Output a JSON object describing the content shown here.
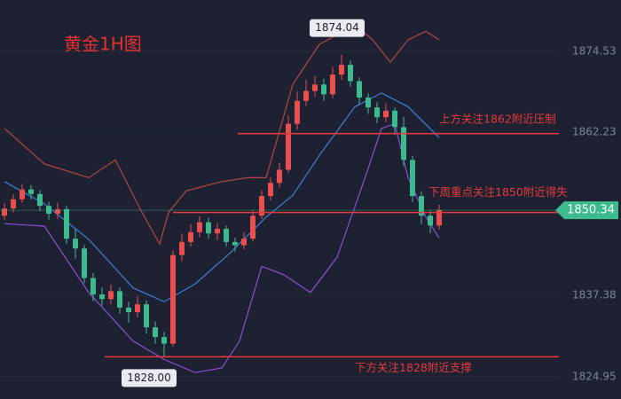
{
  "chart_data": {
    "type": "candlestick",
    "title": "黄金1H图",
    "open": [
      1849.5,
      1850.6,
      1852.0,
      1853.5,
      1852.8,
      1851.0,
      1849.8,
      1850.5,
      1846.0,
      1844.5,
      1840.0,
      1837.5,
      1836.8,
      1838.0,
      1835.5,
      1834.8,
      1836.0,
      1832.5,
      1831.0,
      1830.0,
      1843.5,
      1845.5,
      1847.0,
      1848.5,
      1846.8,
      1847.5,
      1845.5,
      1845.0,
      1846.0,
      1849.5,
      1852.5,
      1854.5,
      1856.5,
      1863.5,
      1867.0,
      1868.5,
      1869.5,
      1868.0,
      1871.0,
      1872.5,
      1870.0,
      1867.5,
      1866.0,
      1864.5,
      1865.5,
      1863.0,
      1858.0,
      1852.5,
      1849.5,
      1848.0
    ],
    "high": [
      1851.4,
      1852.8,
      1854.3,
      1854.2,
      1853.4,
      1851.6,
      1851.5,
      1851.0,
      1847.5,
      1845.0,
      1840.8,
      1838.6,
      1839.0,
      1838.6,
      1836.4,
      1837.2,
      1836.6,
      1833.4,
      1831.8,
      1844.2,
      1846.8,
      1848.2,
      1849.4,
      1849.2,
      1848.4,
      1848.0,
      1846.2,
      1847.0,
      1850.4,
      1853.4,
      1855.4,
      1857.6,
      1864.8,
      1868.4,
      1870.2,
      1870.8,
      1870.4,
      1872.2,
      1874.04,
      1873.2,
      1870.6,
      1868.2,
      1866.8,
      1866.6,
      1866.0,
      1864.6,
      1858.6,
      1853.2,
      1850.4,
      1851.2
    ],
    "low": [
      1848.9,
      1850.0,
      1851.5,
      1852.0,
      1850.2,
      1848.9,
      1849.0,
      1845.2,
      1843.0,
      1839.2,
      1836.5,
      1835.8,
      1836.0,
      1834.6,
      1833.2,
      1834.0,
      1831.5,
      1830.0,
      1828.0,
      1829.6,
      1842.6,
      1844.8,
      1846.2,
      1846.0,
      1845.8,
      1844.8,
      1844.0,
      1844.4,
      1845.6,
      1849.0,
      1851.8,
      1853.8,
      1856.0,
      1862.6,
      1866.2,
      1867.6,
      1867.0,
      1867.4,
      1870.2,
      1869.2,
      1866.4,
      1865.0,
      1863.6,
      1863.8,
      1861.8,
      1857.0,
      1851.6,
      1848.2,
      1846.8,
      1847.4
    ],
    "close": [
      1850.6,
      1852.0,
      1853.5,
      1852.8,
      1851.0,
      1849.8,
      1850.5,
      1846.0,
      1844.5,
      1840.0,
      1837.5,
      1836.8,
      1838.0,
      1835.5,
      1834.8,
      1836.0,
      1832.5,
      1831.0,
      1830.0,
      1843.5,
      1845.5,
      1847.0,
      1848.5,
      1846.8,
      1847.5,
      1845.5,
      1845.0,
      1846.0,
      1849.5,
      1852.5,
      1854.5,
      1856.5,
      1863.5,
      1867.0,
      1868.5,
      1869.5,
      1868.0,
      1871.0,
      1872.5,
      1870.0,
      1867.5,
      1866.0,
      1864.5,
      1865.5,
      1863.0,
      1858.0,
      1852.5,
      1849.5,
      1848.0,
      1850.34
    ],
    "up_color": "#e8504f",
    "down_color": "#3dbb8f",
    "series": [
      {
        "color": "#b5473f",
        "x": [
          0,
          4.5,
          9.5,
          12.5,
          15.5,
          17.5,
          18.5,
          20.5,
          24.5,
          27.5,
          29.5,
          32.5,
          35.5,
          39.5,
          41.5,
          43.5,
          45.5,
          47.5,
          49
        ],
        "values": [
          1862.8,
          1857.4,
          1855.3,
          1858,
          1850,
          1845.2,
          1850,
          1853.3,
          1854.7,
          1855.3,
          1855.3,
          1869.5,
          1875.6,
          1878.6,
          1876.3,
          1872.9,
          1876.3,
          1877.6,
          1876.3
        ]
      },
      {
        "color": "#3d7fd9",
        "x": [
          0,
          4.5,
          9.5,
          14.5,
          18,
          21.5,
          25.5,
          29.5,
          32.5,
          35.5,
          39.5,
          42.5,
          45.5,
          49
        ],
        "values": [
          1854.7,
          1851.3,
          1845.9,
          1838.5,
          1836.4,
          1839.1,
          1843.9,
          1849.3,
          1852.6,
          1858.7,
          1866.1,
          1868.2,
          1866.1,
          1861.4
        ]
      },
      {
        "color": "#8b4fd6",
        "x": [
          0,
          4.5,
          9.5,
          14.5,
          18,
          21.5,
          24.5,
          26.5,
          29,
          31.5,
          34.5,
          37.5,
          40.5,
          42.5,
          44,
          45.5,
          47.5,
          49
        ],
        "values": [
          1848.3,
          1847.9,
          1837.8,
          1830.4,
          1827.6,
          1825.6,
          1826.3,
          1830.4,
          1841.8,
          1840.5,
          1837.8,
          1843.2,
          1854.7,
          1862.8,
          1863.5,
          1855.3,
          1849.3,
          1846.1
        ]
      }
    ],
    "ylim": [
      1821.57,
      1882.37
    ],
    "yticks": [
      1874.53,
      1862.23,
      1837.38,
      1824.95
    ],
    "grid": true,
    "annotations": [
      {
        "text": "上方关注1862附近压制",
        "value": 1862
      },
      {
        "text": "下周重点关注1850附近得失",
        "value": 1850
      },
      {
        "text": "下方关注1828附近支撑",
        "value": 1828
      }
    ],
    "max_label": 1874.04,
    "min_label": {
      "value": 1828,
      "label": "1828.00"
    },
    "last_price": 1850.34
  }
}
